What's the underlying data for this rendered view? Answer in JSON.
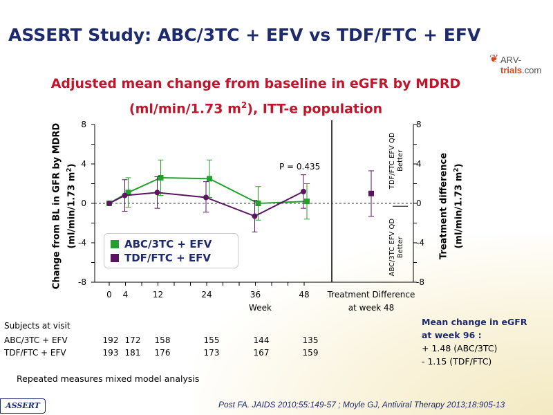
{
  "slide": {
    "title": "ASSERT Study: ABC/3TC + EFV vs TDF/FTC + EFV",
    "logo": {
      "prefix": "ARV-",
      "brand": "trials",
      "suffix": ".com"
    },
    "assert_tag": "ASSERT",
    "references": "Post FA. JAIDS 2010;55:149-57 ; Moyle GJ, Antiviral Therapy 2013;18:905-13",
    "footnote": "Repeated measures mixed model analysis"
  },
  "chart_title": {
    "line1": "Adjusted mean change from baseline in eGFR by MDRD",
    "line2_pre": "(ml/min/1.73 m",
    "line2_sup": "2",
    "line2_post": "), ITT-e population"
  },
  "chart_data": {
    "type": "line",
    "x_ticks": [
      0,
      4,
      12,
      24,
      36,
      48
    ],
    "xlabel": "Week",
    "treatment_label_line1": "Treatment Difference",
    "treatment_label_line2": "at week 48",
    "ylabel_left_line1": "Change from BL in GFR by MDRD",
    "ylabel_left_line2_pre": "(ml/min/1.73 m",
    "ylabel_left_line2_sup": "2",
    "ylabel_left_line2_post": ")",
    "ylabel_right_line1": "Treatment difference",
    "ylabel_right_line2_pre": "(ml/min/1.73 m",
    "ylabel_right_line2_sup": "2",
    "ylabel_right_line2_post": ")",
    "y_ticks": [
      "8",
      "4",
      "0",
      "-4",
      "-8"
    ],
    "ylim": [
      -8,
      8
    ],
    "better_left_line1": "ABC/3TC EFV QD",
    "better_left_line2": "Better",
    "better_right_line1": "TDF/FTC EFV QD",
    "better_right_line2": "Better",
    "p_value": "P = 0.435",
    "series": [
      {
        "name": "ABC/3TC + EFV",
        "color": "#22a12d",
        "marker": "square",
        "x": [
          0,
          4,
          12,
          24,
          36,
          48
        ],
        "y": [
          0,
          1.1,
          2.6,
          2.5,
          0.0,
          0.2
        ],
        "err_low": [
          0,
          -0.4,
          0.8,
          0.6,
          -1.7,
          -1.6
        ],
        "err_high": [
          0,
          2.6,
          4.4,
          4.4,
          1.7,
          2.0
        ]
      },
      {
        "name": "TDF/FTC + EFV",
        "color": "#5b1560",
        "marker": "circle",
        "x": [
          0,
          4,
          12,
          24,
          36,
          48
        ],
        "y": [
          0,
          0.8,
          1.1,
          0.6,
          -1.3,
          1.2
        ],
        "err_low": [
          0,
          -0.8,
          -0.5,
          -0.9,
          -2.9,
          -0.5
        ],
        "err_high": [
          0,
          2.4,
          2.7,
          2.2,
          0.3,
          2.9
        ]
      }
    ],
    "treatment_difference": {
      "value": 1.0,
      "err_low": -1.3,
      "err_high": 3.3,
      "color": "#5b1560"
    }
  },
  "subjects": {
    "header": "Subjects at visit",
    "rows": [
      {
        "label": "ABC/3TC + EFV",
        "values": [
          "192",
          "172",
          "158",
          "155",
          "144",
          "135"
        ]
      },
      {
        "label": "TDF/FTC + EFV",
        "values": [
          "193",
          "181",
          "176",
          "173",
          "167",
          "159"
        ]
      }
    ]
  },
  "mean_week96": {
    "title_line1": "Mean change in eGFR",
    "title_line2": "at week 96 :",
    "line1": "+ 1.48 (ABC/3TC)",
    "line2": "- 1.15 (TDF/FTC)"
  }
}
